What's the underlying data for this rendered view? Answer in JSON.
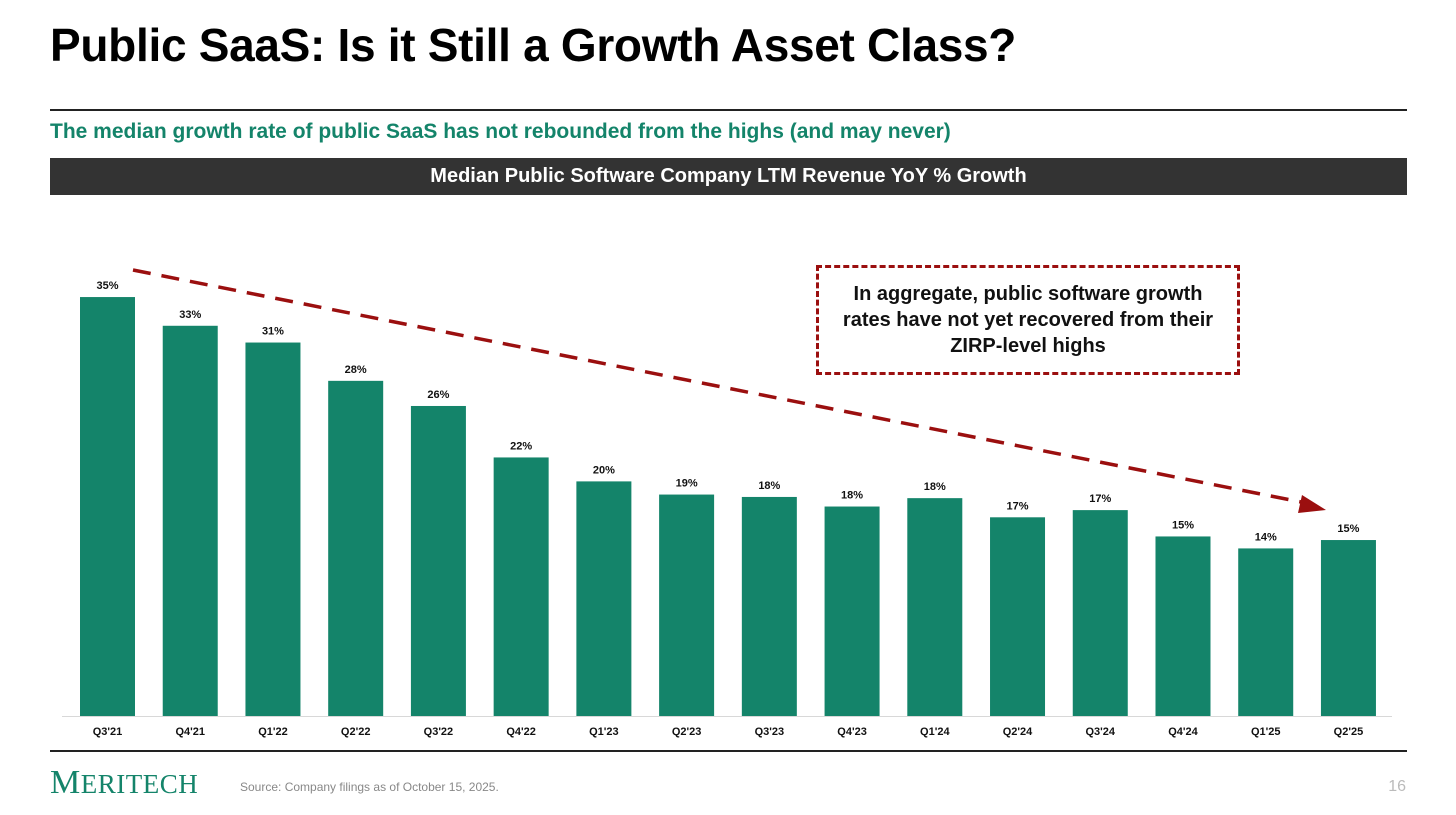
{
  "header": {
    "title": "Public SaaS: Is it Still a Growth Asset Class?",
    "subtitle": "The median growth rate of public SaaS has not rebounded from the highs (and may never)"
  },
  "chart_data": {
    "type": "bar",
    "title": "Median Public Software Company LTM Revenue YoY % Growth",
    "categories": [
      "Q3'21",
      "Q4'21",
      "Q1'22",
      "Q2'22",
      "Q3'22",
      "Q4'22",
      "Q1'23",
      "Q2'23",
      "Q3'23",
      "Q4'23",
      "Q1'24",
      "Q2'24",
      "Q3'24",
      "Q4'24",
      "Q1'25",
      "Q2'25"
    ],
    "values": [
      35.0,
      32.6,
      31.2,
      28.0,
      25.9,
      21.6,
      19.6,
      18.5,
      18.3,
      17.5,
      18.2,
      16.6,
      17.2,
      15.0,
      14.0,
      14.7
    ],
    "labels": [
      "35%",
      "33%",
      "31%",
      "28%",
      "26%",
      "22%",
      "20%",
      "19%",
      "18%",
      "18%",
      "18%",
      "17%",
      "17%",
      "15%",
      "14%",
      "15%"
    ],
    "ylim": [
      0,
      40
    ],
    "xlabel": "",
    "ylabel": "",
    "grid": false,
    "bar_color": "#14846a",
    "trend_color": "#9b0f0f",
    "annotation": "In aggregate, public software growth rates have not yet recovered from their ZIRP-level highs"
  },
  "footer": {
    "logo": "MERITECH",
    "source": "Source: Company filings as of October 15, 2025.",
    "page": "16"
  }
}
